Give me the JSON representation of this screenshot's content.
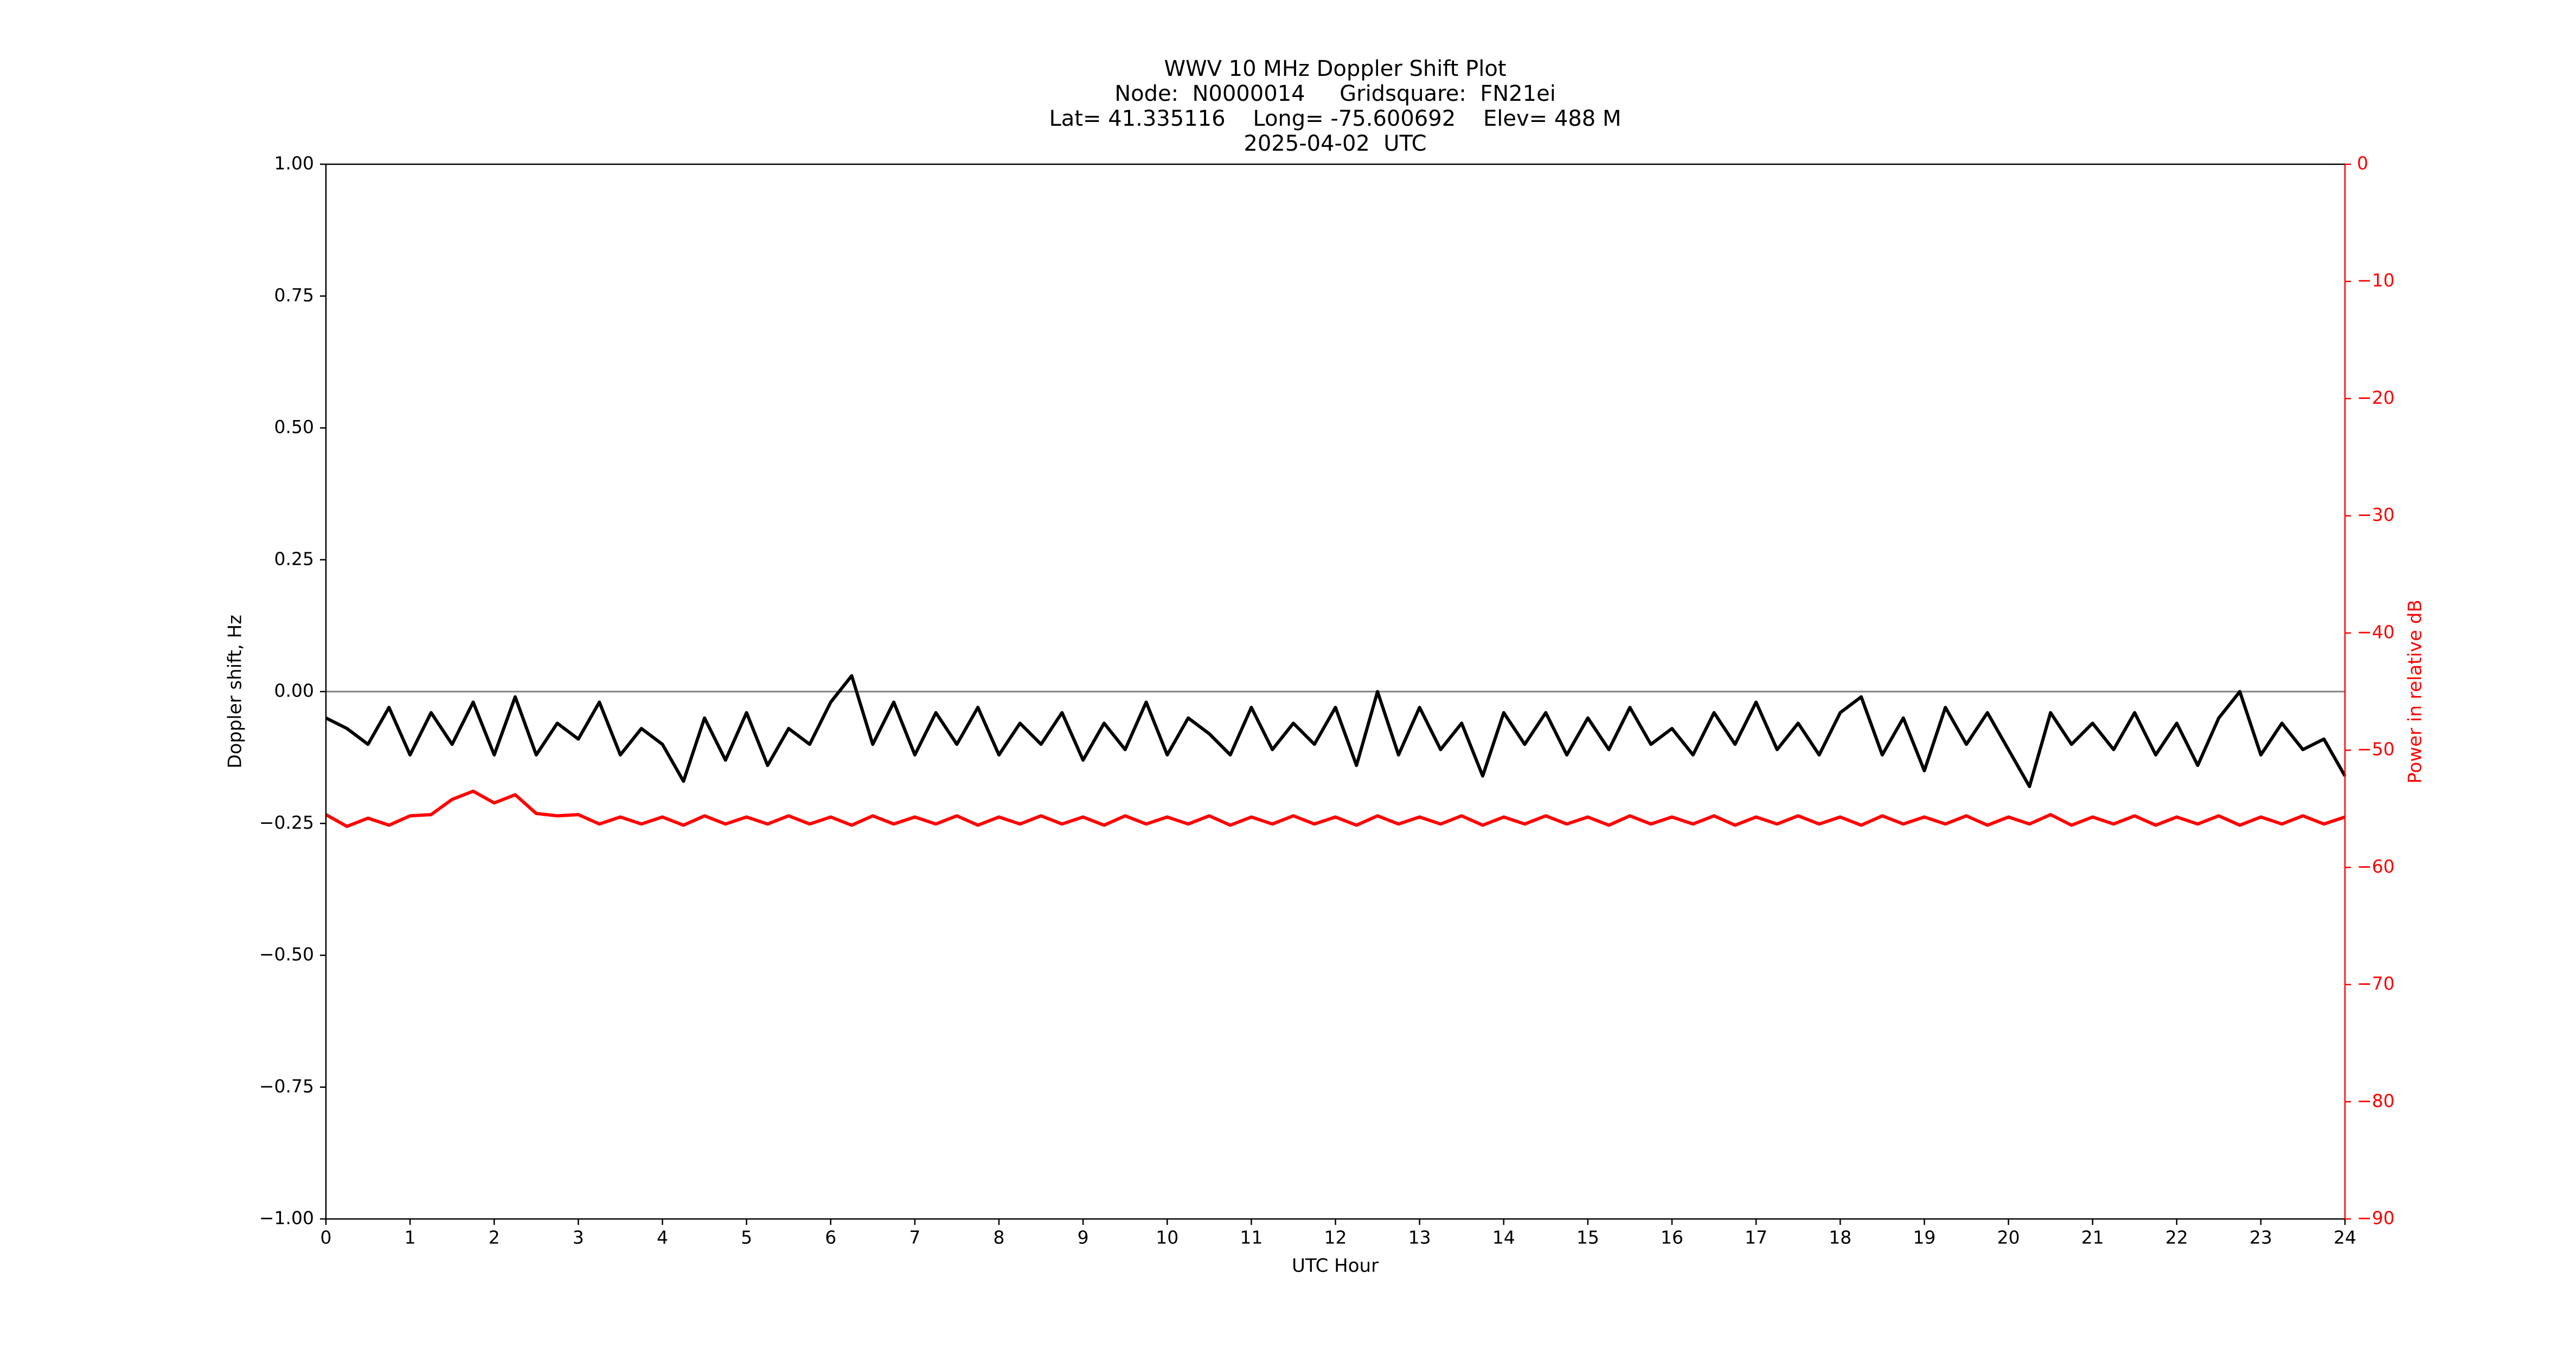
{
  "chart_data": {
    "type": "line",
    "title": [
      "WWV 10 MHz Doppler Shift Plot",
      "Node:  N0000014     Gridsquare:  FN21ei",
      "Lat= 41.335116    Long= -75.600692    Elev= 488 M",
      "2025-04-02  UTC"
    ],
    "x_label": "UTC Hour",
    "y_label": "Doppler shift, Hz",
    "y2_label": "Power in relative dB",
    "y2_color": "#ff0000",
    "xlim": [
      0,
      24
    ],
    "xticks": [
      0,
      1,
      2,
      3,
      4,
      5,
      6,
      7,
      8,
      9,
      10,
      11,
      12,
      13,
      14,
      15,
      16,
      17,
      18,
      19,
      20,
      21,
      22,
      23,
      24
    ],
    "ylim": [
      -1,
      1
    ],
    "yticks": [
      {
        "value": -1,
        "label": "−1.00"
      },
      {
        "value": -0.75,
        "label": "−0.75"
      },
      {
        "value": -0.5,
        "label": "−0.50"
      },
      {
        "value": -0.25,
        "label": "−0.25"
      },
      {
        "value": 0,
        "label": "0.00"
      },
      {
        "value": 0.25,
        "label": "0.25"
      },
      {
        "value": 0.5,
        "label": "0.50"
      },
      {
        "value": 0.75,
        "label": "0.75"
      },
      {
        "value": 1,
        "label": "1.00"
      }
    ],
    "y2lim": [
      -90,
      0
    ],
    "y2ticks": [
      {
        "value": -90,
        "label": "−90"
      },
      {
        "value": -80,
        "label": "−80"
      },
      {
        "value": -70,
        "label": "−70"
      },
      {
        "value": -60,
        "label": "−60"
      },
      {
        "value": -50,
        "label": "−50"
      },
      {
        "value": -40,
        "label": "−40"
      },
      {
        "value": -30,
        "label": "−30"
      },
      {
        "value": -20,
        "label": "−20"
      },
      {
        "value": -10,
        "label": "−10"
      },
      0
    ],
    "reference_line": {
      "y": 0,
      "color": "#808080"
    },
    "x": [
      0,
      0.25,
      0.5,
      0.75,
      1,
      1.25,
      1.5,
      1.75,
      2,
      2.25,
      2.5,
      2.75,
      3,
      3.25,
      3.5,
      3.75,
      4,
      4.25,
      4.5,
      4.75,
      5,
      5.25,
      5.5,
      5.75,
      6,
      6.25,
      6.5,
      6.75,
      7,
      7.25,
      7.5,
      7.75,
      8,
      8.25,
      8.5,
      8.75,
      9,
      9.25,
      9.5,
      9.75,
      10,
      10.25,
      10.5,
      10.75,
      11,
      11.25,
      11.5,
      11.75,
      12,
      12.25,
      12.5,
      12.75,
      13,
      13.25,
      13.5,
      13.75,
      14,
      14.25,
      14.5,
      14.75,
      15,
      15.25,
      15.5,
      15.75,
      16,
      16.25,
      16.5,
      16.75,
      17,
      17.25,
      17.5,
      17.75,
      18,
      18.25,
      18.5,
      18.75,
      19,
      19.25,
      19.5,
      19.75,
      20,
      20.25,
      20.5,
      20.75,
      21,
      21.25,
      21.5,
      21.75,
      22,
      22.25,
      22.5,
      22.75,
      23,
      23.25,
      23.5,
      23.75,
      24
    ],
    "series": [
      {
        "color": "#000000",
        "values": [
          -0.05,
          -0.07,
          -0.1,
          -0.03,
          -0.12,
          -0.04,
          -0.1,
          -0.02,
          -0.12,
          -0.01,
          -0.12,
          -0.06,
          -0.09,
          -0.02,
          -0.12,
          -0.07,
          -0.1,
          -0.17,
          -0.05,
          -0.13,
          -0.04,
          -0.14,
          -0.07,
          -0.1,
          -0.02,
          0.03,
          -0.1,
          -0.02,
          -0.12,
          -0.04,
          -0.1,
          -0.03,
          -0.12,
          -0.06,
          -0.1,
          -0.04,
          -0.13,
          -0.06,
          -0.11,
          -0.02,
          -0.12,
          -0.05,
          -0.08,
          -0.12,
          -0.03,
          -0.11,
          -0.06,
          -0.1,
          -0.03,
          -0.14,
          0.0,
          -0.12,
          -0.03,
          -0.11,
          -0.06,
          -0.16,
          -0.04,
          -0.1,
          -0.04,
          -0.12,
          -0.05,
          -0.11,
          -0.03,
          -0.1,
          -0.07,
          -0.12,
          -0.04,
          -0.1,
          -0.02,
          -0.11,
          -0.06,
          -0.12,
          -0.04,
          -0.01,
          -0.12,
          -0.05,
          -0.15,
          -0.03,
          -0.1,
          -0.04,
          -0.11,
          -0.18,
          -0.04,
          -0.1,
          -0.06,
          -0.11,
          -0.04,
          -0.12,
          -0.06,
          -0.14,
          -0.05,
          0.0,
          -0.12,
          -0.06,
          -0.11,
          -0.09,
          -0.16
        ]
      },
      {
        "color": "#ff0000",
        "axis": "y2",
        "values": [
          -55.5,
          -56.5,
          -55.8,
          -56.4,
          -55.6,
          -55.5,
          -54.2,
          -53.5,
          -54.5,
          -53.8,
          -55.4,
          -55.6,
          -55.5,
          -56.3,
          -55.7,
          -56.3,
          -55.7,
          -56.4,
          -55.6,
          -56.3,
          -55.7,
          -56.3,
          -55.6,
          -56.3,
          -55.7,
          -56.4,
          -55.6,
          -56.3,
          -55.7,
          -56.3,
          -55.6,
          -56.4,
          -55.7,
          -56.3,
          -55.6,
          -56.3,
          -55.7,
          -56.4,
          -55.6,
          -56.3,
          -55.7,
          -56.3,
          -55.6,
          -56.4,
          -55.7,
          -56.3,
          -55.6,
          -56.3,
          -55.7,
          -56.4,
          -55.6,
          -56.3,
          -55.7,
          -56.3,
          -55.6,
          -56.4,
          -55.7,
          -56.3,
          -55.6,
          -56.3,
          -55.7,
          -56.4,
          -55.6,
          -56.3,
          -55.7,
          -56.3,
          -55.6,
          -56.4,
          -55.7,
          -56.3,
          -55.6,
          -56.3,
          -55.7,
          -56.4,
          -55.6,
          -56.3,
          -55.7,
          -56.3,
          -55.6,
          -56.4,
          -55.7,
          -56.3,
          -55.5,
          -56.4,
          -55.7,
          -56.3,
          -55.6,
          -56.4,
          -55.7,
          -56.3,
          -55.6,
          -56.4,
          -55.7,
          -56.3,
          -55.6,
          -56.3,
          -55.7
        ]
      }
    ]
  }
}
